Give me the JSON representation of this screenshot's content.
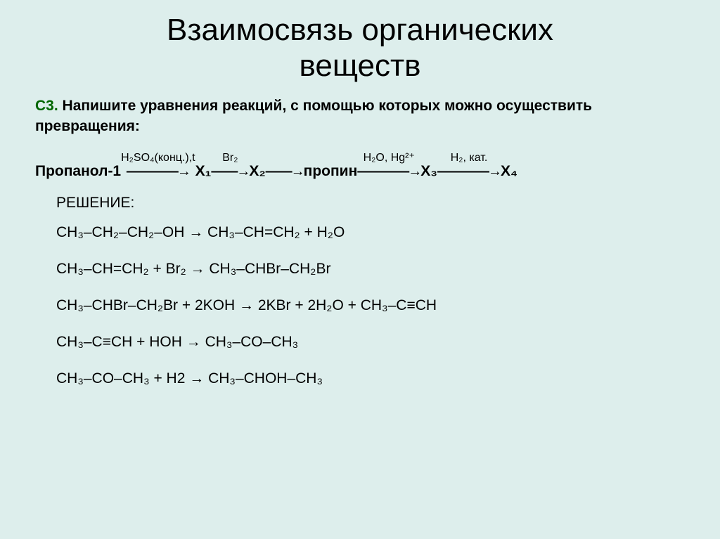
{
  "title_line1": "Взаимосвязь органических",
  "title_line2": "веществ",
  "task_label": "С3.",
  "task_text": " Напишите уравнения реакций, с помощью которых можно осуществить превращения:",
  "scheme": {
    "compound0": "Пропанол-1",
    "cond1": "H₂SO₄(конц.),t",
    "x1": "X₁",
    "cond2": "Br₂",
    "x2": "X₂",
    "propine": "пропин",
    "cond4": "H₂O, Hg²⁺",
    "x3": "X₃",
    "cond5": "H₂, кат.",
    "x4": "X₄",
    "arrow_long": "————→",
    "arrow_short": "——→"
  },
  "solution_label": "РЕШЕНИЕ:",
  "eq1": "CH₃–CH₂–CH₂–OH → CH₃–CH=CH₂ + H₂O",
  "eq2": "CH₃–CH=CH₂ + Br₂ → CH₃–CHBr–CH₂Br",
  "eq3": "CH₃–CHBr–CH₂Br + 2KOH → 2KBr + 2H₂O + CH₃–C≡CH",
  "eq4": "CH₃–C≡CH + HOH → CH₃–CO–CH₃",
  "eq5": "CH₃–CO–CH₃ + H2 → CH₃–CHOH–CH₃",
  "colors": {
    "background": "#ddeeec",
    "text": "#000000",
    "accent": "#006600"
  }
}
